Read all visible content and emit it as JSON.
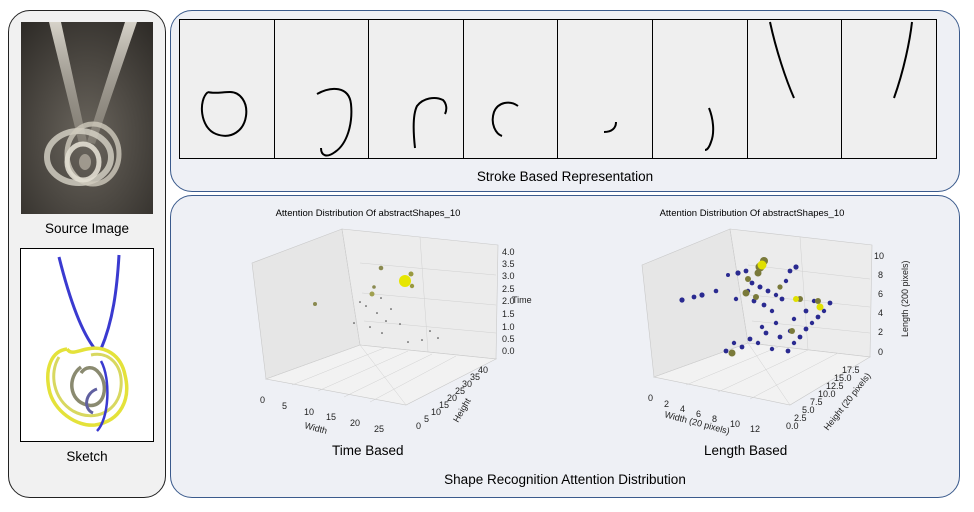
{
  "left_panel": {
    "source_caption": "Source Image",
    "sketch_caption": "Sketch"
  },
  "top_panel": {
    "caption": "Stroke Based Representation"
  },
  "bottom_panel": {
    "caption": "Shape Recognition Attention Distribution",
    "time_caption": "Time Based",
    "length_caption": "Length Based"
  },
  "chart_data": [
    {
      "type": "scatter",
      "title": "Attention Distribution Of abstractShapes_10",
      "xlabel": "Width",
      "ylabel": "Height",
      "zlabel": "Time",
      "x_ticks": [
        "0",
        "5",
        "10",
        "15",
        "20",
        "25"
      ],
      "y_ticks": [
        "0",
        "5",
        "10",
        "15",
        "20",
        "25",
        "30",
        "35",
        "40"
      ],
      "z_ticks": [
        "0.0",
        "0.5",
        "1.0",
        "1.5",
        "2.0",
        "2.5",
        "3.0",
        "3.5",
        "4.0"
      ]
    },
    {
      "type": "scatter",
      "title": "Attention Distribution Of abstractShapes_10",
      "xlabel": "Width (20 pixels)",
      "ylabel": "Height (20 pixels)",
      "zlabel": "Length (200 pixels)",
      "x_ticks": [
        "0",
        "2",
        "4",
        "6",
        "8",
        "10",
        "12"
      ],
      "y_ticks": [
        "0.0",
        "2.5",
        "5.0",
        "7.5",
        "10.0",
        "12.5",
        "15.0",
        "17.5"
      ],
      "z_ticks": [
        "0",
        "2",
        "4",
        "6",
        "8",
        "10"
      ]
    }
  ]
}
